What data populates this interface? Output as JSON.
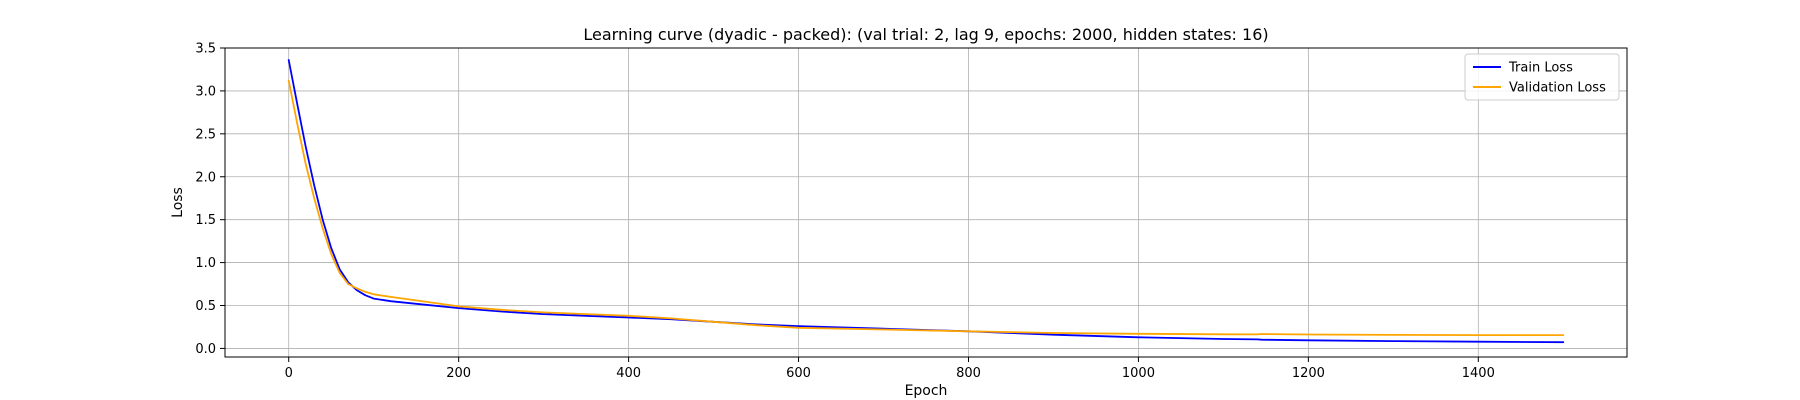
{
  "chart_data": {
    "type": "line",
    "title": "Learning curve (dyadic - packed): (val trial: 2, lag 9, epochs: 2000, hidden states: 16)",
    "xlabel": "Epoch",
    "ylabel": "Loss",
    "xlim": [
      -75,
      1575
    ],
    "ylim": [
      -0.1,
      3.5
    ],
    "xticks": [
      0,
      200,
      400,
      600,
      800,
      1000,
      1200,
      1400
    ],
    "yticks": [
      0.0,
      0.5,
      1.0,
      1.5,
      2.0,
      2.5,
      3.0,
      3.5
    ],
    "xtick_labels": [
      "0",
      "200",
      "400",
      "600",
      "800",
      "1000",
      "1200",
      "1400"
    ],
    "ytick_labels": [
      "0.0",
      "0.5",
      "1.0",
      "1.5",
      "2.0",
      "2.5",
      "3.0",
      "3.5"
    ],
    "grid": true,
    "legend_position": "top-right",
    "series": [
      {
        "name": "Train Loss",
        "color": "#0000ff",
        "x": [
          0,
          10,
          20,
          30,
          40,
          50,
          60,
          70,
          80,
          90,
          100,
          120,
          150,
          200,
          250,
          300,
          350,
          400,
          450,
          500,
          550,
          600,
          700,
          800,
          900,
          1000,
          1100,
          1140,
          1145,
          1200,
          1300,
          1400,
          1500
        ],
        "y": [
          3.36,
          2.85,
          2.35,
          1.9,
          1.5,
          1.17,
          0.92,
          0.77,
          0.68,
          0.62,
          0.58,
          0.55,
          0.52,
          0.47,
          0.43,
          0.4,
          0.38,
          0.36,
          0.34,
          0.31,
          0.28,
          0.26,
          0.23,
          0.2,
          0.16,
          0.13,
          0.11,
          0.105,
          0.102,
          0.095,
          0.085,
          0.078,
          0.072
        ]
      },
      {
        "name": "Validation Loss",
        "color": "#ffa500",
        "x": [
          0,
          10,
          20,
          30,
          40,
          50,
          60,
          70,
          80,
          90,
          100,
          120,
          150,
          200,
          250,
          300,
          350,
          400,
          450,
          500,
          550,
          600,
          700,
          800,
          900,
          1000,
          1100,
          1140,
          1145,
          1200,
          1300,
          1400,
          1500
        ],
        "y": [
          3.12,
          2.62,
          2.15,
          1.75,
          1.4,
          1.1,
          0.88,
          0.75,
          0.7,
          0.66,
          0.63,
          0.6,
          0.56,
          0.49,
          0.45,
          0.42,
          0.4,
          0.38,
          0.35,
          0.31,
          0.27,
          0.24,
          0.22,
          0.2,
          0.18,
          0.17,
          0.165,
          0.163,
          0.168,
          0.162,
          0.158,
          0.155,
          0.155
        ]
      }
    ]
  }
}
